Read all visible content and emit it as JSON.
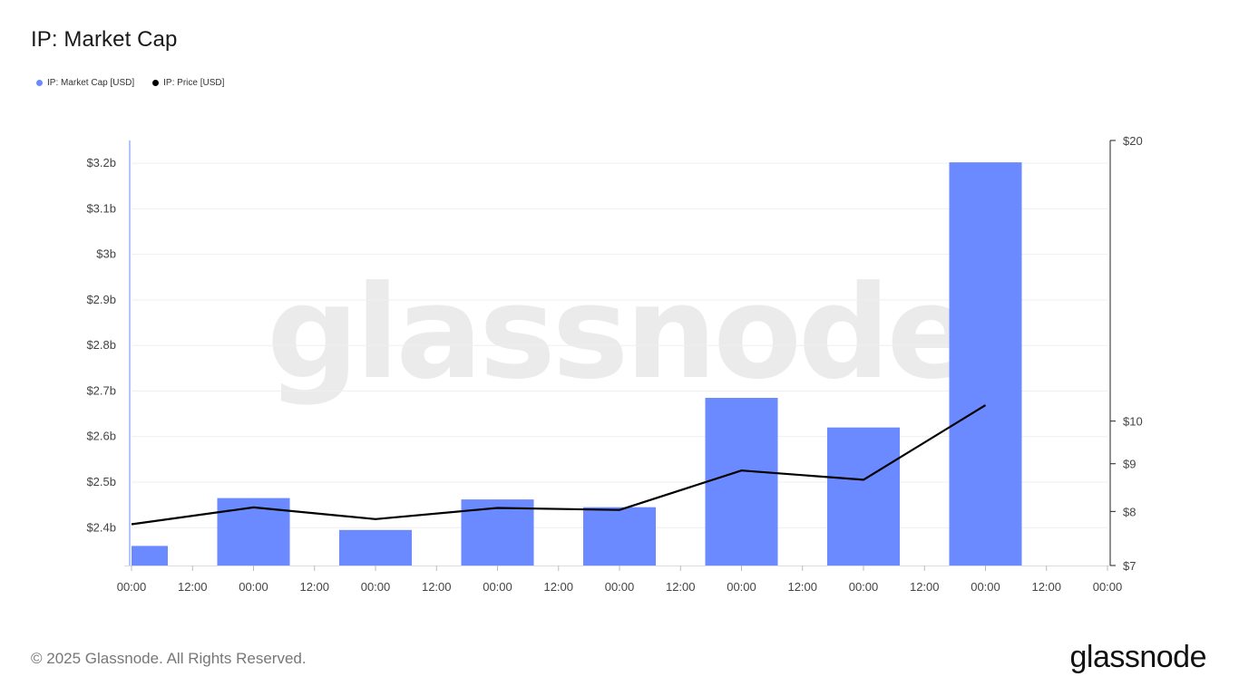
{
  "header": {
    "title": "IP: Market Cap"
  },
  "legend": [
    {
      "label": "IP: Market Cap [USD]",
      "color": "#6b8aff"
    },
    {
      "label": "IP: Price [USD]",
      "color": "#000000"
    }
  ],
  "watermark": "glassnode",
  "footer": {
    "copyright": "© 2025 Glassnode. All Rights Reserved.",
    "logo": "glassnode"
  },
  "chart_data": {
    "type": "bar",
    "title": "IP: Market Cap",
    "x_tick_labels": [
      "00:00",
      "12:00",
      "00:00",
      "12:00",
      "00:00",
      "12:00",
      "00:00",
      "12:00",
      "00:00",
      "12:00",
      "00:00",
      "12:00",
      "00:00",
      "12:00",
      "00:00",
      "12:00",
      "00:00"
    ],
    "x_range": [
      0,
      16
    ],
    "grid": true,
    "legend_position": "top-left",
    "bar_color": "#6b8aff",
    "line_color": "#000000",
    "series": [
      {
        "name": "IP: Market Cap [USD]",
        "type": "bar",
        "axis": "left",
        "x": [
          0,
          2,
          4,
          6,
          8,
          10,
          12,
          14
        ],
        "values": [
          2.36,
          2.465,
          2.395,
          2.462,
          2.445,
          2.685,
          2.62,
          3.202
        ]
      },
      {
        "name": "IP: Price [USD]",
        "type": "line",
        "axis": "right",
        "x": [
          0,
          2,
          4,
          6,
          8,
          10,
          12,
          14
        ],
        "values": [
          7.75,
          8.08,
          7.85,
          8.07,
          8.03,
          8.85,
          8.65,
          10.4
        ]
      }
    ],
    "y_left": {
      "ticks": [
        2.4,
        2.5,
        2.6,
        2.7,
        2.8,
        2.9,
        3.0,
        3.1,
        3.2
      ],
      "tick_labels": [
        "$2.4b",
        "$2.5b",
        "$2.6b",
        "$2.7b",
        "$2.8b",
        "$2.9b",
        "$3b",
        "$3.1b",
        "$3.2b"
      ],
      "ylim": [
        2.317,
        3.25
      ]
    },
    "y_right": {
      "scale": "log",
      "ticks": [
        7,
        8,
        9,
        10,
        20
      ],
      "tick_labels": [
        "$7",
        "$8",
        "$9",
        "$10",
        "$20"
      ],
      "ylim": [
        7,
        20
      ]
    }
  }
}
